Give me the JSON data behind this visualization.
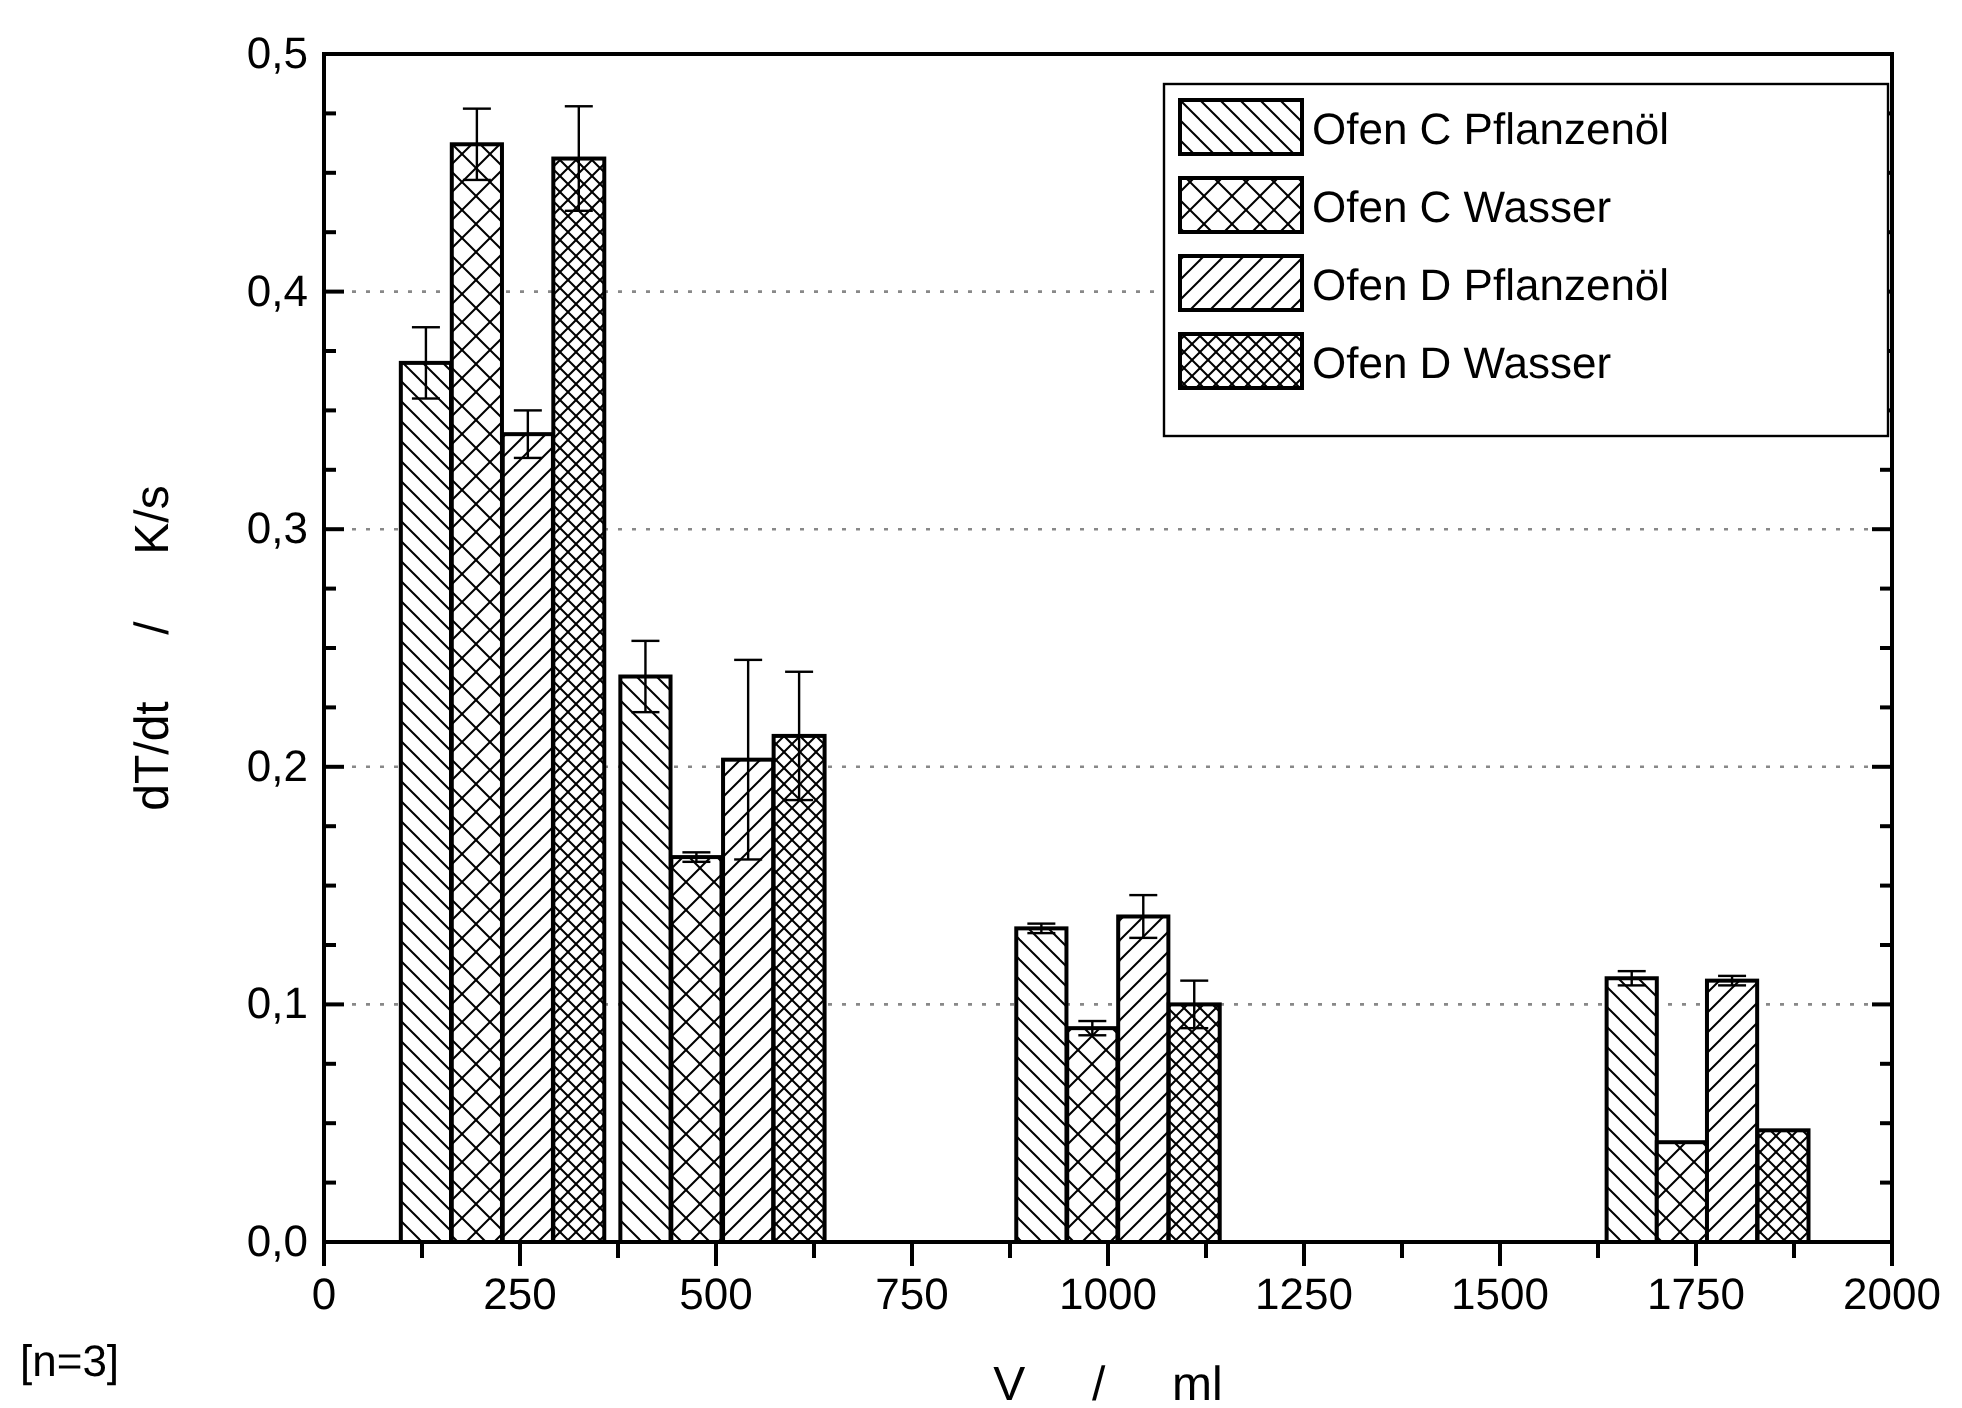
{
  "chart_data": {
    "type": "bar",
    "xlabel": "V     /     ml",
    "ylabel": "dT/dt     /     K/s",
    "xlim": [
      0,
      2000
    ],
    "xticks": [
      0,
      {
        "value": 125,
        "label": null
      },
      250,
      {
        "value": 375,
        "label": null
      },
      500,
      {
        "value": 625,
        "label": null
      },
      750,
      {
        "value": 875,
        "label": null
      },
      1000,
      {
        "value": 1125,
        "label": null
      },
      1250,
      {
        "value": 1375,
        "label": null
      },
      1500,
      {
        "value": 1625,
        "label": null
      },
      1750,
      {
        "value": 1875,
        "label": null
      },
      2000
    ],
    "ylim": [
      0,
      0.5
    ],
    "yticks": [
      {
        "value": 0,
        "label": "0,0"
      },
      {
        "value": 0.025,
        "label": null
      },
      {
        "value": 0.05,
        "label": null
      },
      {
        "value": 0.075,
        "label": null
      },
      {
        "value": 0.1,
        "label": "0,1"
      },
      {
        "value": 0.125,
        "label": null
      },
      {
        "value": 0.15,
        "label": null
      },
      {
        "value": 0.175,
        "label": null
      },
      {
        "value": 0.2,
        "label": "0,2"
      },
      {
        "value": 0.225,
        "label": null
      },
      {
        "value": 0.25,
        "label": null
      },
      {
        "value": 0.275,
        "label": null
      },
      {
        "value": 0.3,
        "label": "0,3"
      },
      {
        "value": 0.325,
        "label": null
      },
      {
        "value": 0.35,
        "label": null
      },
      {
        "value": 0.375,
        "label": null
      },
      {
        "value": 0.4,
        "label": "0,4"
      },
      {
        "value": 0.425,
        "label": null
      },
      {
        "value": 0.45,
        "label": null
      },
      {
        "value": 0.475,
        "label": null
      },
      {
        "value": 0.5,
        "label": "0,5"
      }
    ],
    "grid": "y",
    "legend": "top right",
    "annotations": [
      "[n=3]"
    ],
    "series": [
      {
        "name": "Ofen C Pflanzenöl",
        "color": "#000000",
        "x": [
          130,
          410,
          915,
          1668
        ],
        "values": [
          0.37,
          0.238,
          0.132,
          0.111
        ],
        "errors": [
          0.015,
          0.015,
          0.002,
          0.003
        ]
      },
      {
        "name": "Ofen C Wasser",
        "color": "#000000",
        "x": [
          195,
          475,
          980,
          1732
        ],
        "values": [
          0.462,
          0.162,
          0.09,
          0.042
        ],
        "errors": [
          0.015,
          0.002,
          0.003,
          null
        ]
      },
      {
        "name": "Ofen D Pflanzenöl",
        "color": "#000000",
        "x": [
          260,
          541,
          1045,
          1796
        ],
        "values": [
          0.34,
          0.203,
          0.137,
          0.11
        ],
        "errors": [
          0.01,
          0.042,
          0.009,
          0.002
        ]
      },
      {
        "name": "Ofen D Wasser",
        "color": "#000000",
        "x": [
          325,
          606,
          1110,
          1861
        ],
        "values": [
          0.456,
          0.213,
          0.1,
          0.047
        ],
        "errors": [
          0.022,
          0.027,
          0.01,
          null
        ]
      }
    ]
  }
}
